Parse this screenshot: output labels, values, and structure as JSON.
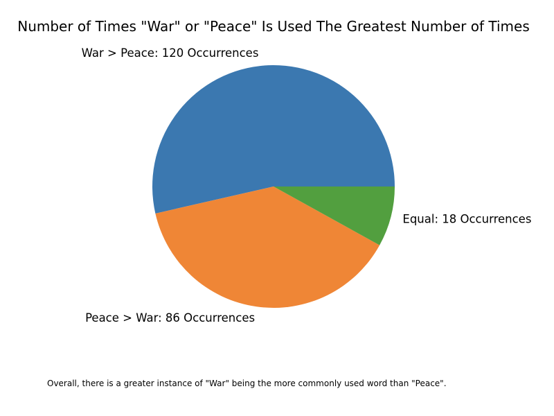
{
  "chart_data": {
    "type": "pie",
    "title": "Number of Times \"War\" or \"Peace\" Is Used The Greatest Number of Times",
    "slices": [
      {
        "label": "War > Peace: 120 Occurrences",
        "value": 120,
        "color": "#3b78b0"
      },
      {
        "label": "Peace > War: 86 Occurrences",
        "value": 86,
        "color": "#ef8636"
      },
      {
        "label": "Equal: 18 Occurrences",
        "value": 18,
        "color": "#529f3f"
      }
    ],
    "start_angle_deg": 0,
    "direction": "counterclockwise",
    "caption": "Overall, there is a greater instance of \"War\" being the more commonly used word than \"Peace\"."
  }
}
